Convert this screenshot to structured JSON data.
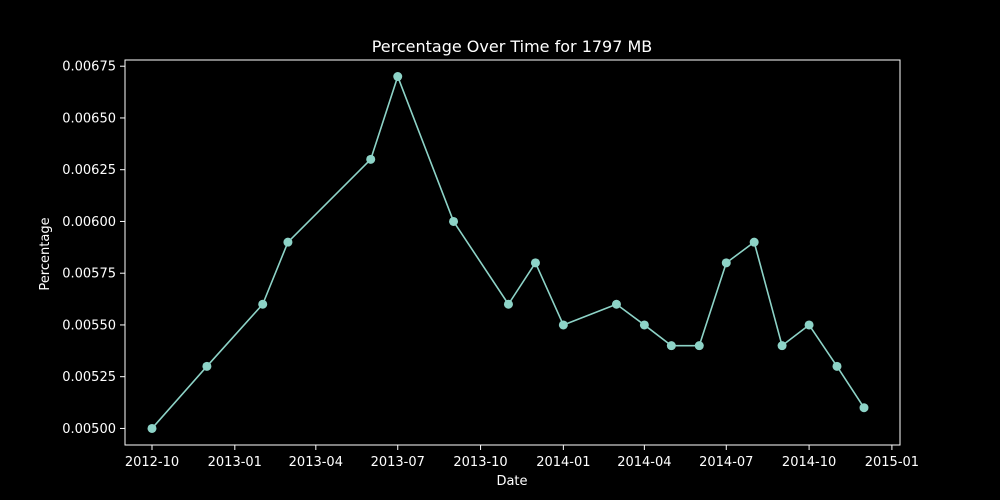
{
  "chart_data": {
    "type": "line",
    "title": "Percentage Over Time for 1797 MB",
    "xlabel": "Date",
    "ylabel": "Percentage",
    "x_axis_kind": "date",
    "xlim": [
      "2012-09-01",
      "2015-01-10"
    ],
    "ylim": [
      0.00492,
      0.00678
    ],
    "grid": false,
    "x_tick_values": [
      "2012-10-01",
      "2013-01-01",
      "2013-04-01",
      "2013-07-01",
      "2013-10-01",
      "2014-01-01",
      "2014-04-01",
      "2014-07-01",
      "2014-10-01",
      "2015-01-01"
    ],
    "x_tick_labels": [
      "2012-10",
      "2013-01",
      "2013-04",
      "2013-07",
      "2013-10",
      "2014-01",
      "2014-04",
      "2014-07",
      "2014-10",
      "2015-01"
    ],
    "y_ticks": [
      0.005,
      0.00525,
      0.0055,
      0.00575,
      0.006,
      0.00625,
      0.0065,
      0.00675
    ],
    "y_tick_labels": [
      "0.00500",
      "0.00525",
      "0.00550",
      "0.00575",
      "0.00600",
      "0.00625",
      "0.00650",
      "0.00675"
    ],
    "series": [
      {
        "color": "#8dd3c7",
        "x": [
          "2012-10-01",
          "2012-12-01",
          "2013-02-01",
          "2013-03-01",
          "2013-06-01",
          "2013-07-01",
          "2013-09-01",
          "2013-11-01",
          "2013-12-01",
          "2014-01-01",
          "2014-03-01",
          "2014-04-01",
          "2014-05-01",
          "2014-06-01",
          "2014-07-01",
          "2014-08-01",
          "2014-09-01",
          "2014-10-01",
          "2014-11-01",
          "2014-12-01"
        ],
        "y": [
          0.005,
          0.0053,
          0.0056,
          0.0059,
          0.0063,
          0.0067,
          0.006,
          0.0056,
          0.0058,
          0.0055,
          0.0056,
          0.0055,
          0.0054,
          0.0054,
          0.0058,
          0.0059,
          0.0054,
          0.0055,
          0.0053,
          0.0051
        ]
      }
    ]
  }
}
